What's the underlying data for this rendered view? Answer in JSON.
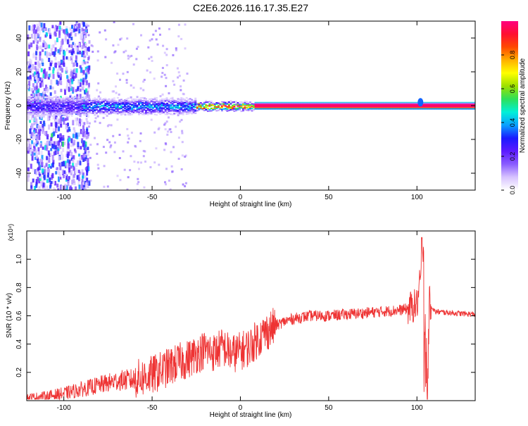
{
  "title": "C2E6.2026.116.17.35.E27",
  "colors": {
    "snr_line": "#ee3333",
    "frame": "#000000",
    "tick_line": "#000000"
  },
  "colorbar": {
    "label": "Normalized spectral amplitude",
    "range": [
      0,
      1
    ],
    "ticks": [
      "0.0",
      "0.2",
      "0.4",
      "0.6",
      "0.8"
    ],
    "tick_values": [
      0.0,
      0.2,
      0.4,
      0.6,
      0.8
    ],
    "colormap": [
      "#ffffff",
      "#d7c3ff",
      "#8a5cff",
      "#5b1aff",
      "#1a1aff",
      "#0aa0ff",
      "#00f0d8",
      "#2de05a",
      "#9ce000",
      "#ffff00",
      "#ffb000",
      "#ff4a00",
      "#ff1030",
      "#ff0080"
    ]
  },
  "chart_data": [
    {
      "type": "heatmap",
      "title": "C2E6.2026.116.17.35.E27",
      "xlabel": "Height of straight line (km)",
      "ylabel": "Frequency (Hz)",
      "xlim": [
        -121,
        133
      ],
      "ylim": [
        -50,
        50
      ],
      "xticks": [
        -100,
        -50,
        0,
        50,
        100
      ],
      "xtick_labels": [
        "-100",
        "-50",
        "0",
        "50",
        "100"
      ],
      "yticks": [
        -40,
        -20,
        0,
        20,
        40
      ],
      "ytick_labels": [
        "-40",
        "-20",
        "0",
        "20",
        "40"
      ],
      "description_band": {
        "center_frequency": 0,
        "bands": [
          {
            "x_start": -121,
            "x_end": -90,
            "half_width": 4,
            "peak": 0.3
          },
          {
            "x_start": -90,
            "x_end": -25,
            "half_width": 3,
            "peak": 0.45
          },
          {
            "x_start": -25,
            "x_end": 8,
            "half_width": 1.5,
            "peak": 0.95
          },
          {
            "x_start": 8,
            "x_end": 133,
            "half_width": 1.2,
            "peak": 1.0
          }
        ],
        "noise_region": {
          "x_start": -121,
          "x_end": -90,
          "intensity": 0.35
        },
        "feature_at": {
          "x": 102,
          "frequency": 2
        }
      }
    },
    {
      "type": "line",
      "xlabel": "Height of straight line (km)",
      "ylabel": "SNR (10 * v/v)",
      "yscale_label": "(x10⁴)",
      "xlim": [
        -121,
        133
      ],
      "ylim": [
        0,
        1.2
      ],
      "xticks": [
        -100,
        -50,
        0,
        50,
        100
      ],
      "xtick_labels": [
        "-100",
        "-50",
        "0",
        "50",
        "100"
      ],
      "yticks": [
        0.2,
        0.4,
        0.6,
        0.8,
        1.0
      ],
      "ytick_labels": [
        "0.2",
        "0.4",
        "0.6",
        "0.8",
        "1.0"
      ],
      "series": [
        {
          "x": [
            -121,
            -110,
            -100,
            -90,
            -80,
            -70,
            -60,
            -50,
            -45,
            -40,
            -35,
            -30,
            -25,
            -20,
            -15,
            -10,
            -5,
            0,
            5,
            10,
            15,
            20,
            25,
            30,
            40,
            50,
            60,
            70,
            80,
            90,
            95,
            100,
            102,
            104,
            105,
            106,
            107,
            110,
            120,
            133
          ],
          "y": [
            0.02,
            0.03,
            0.05,
            0.08,
            0.11,
            0.14,
            0.15,
            0.18,
            0.21,
            0.24,
            0.27,
            0.29,
            0.33,
            0.36,
            0.34,
            0.38,
            0.33,
            0.35,
            0.38,
            0.44,
            0.49,
            0.53,
            0.56,
            0.58,
            0.6,
            0.6,
            0.61,
            0.62,
            0.63,
            0.64,
            0.65,
            0.68,
            0.85,
            1.1,
            0.1,
            0.05,
            0.7,
            0.63,
            0.62,
            0.61
          ]
        }
      ]
    }
  ]
}
